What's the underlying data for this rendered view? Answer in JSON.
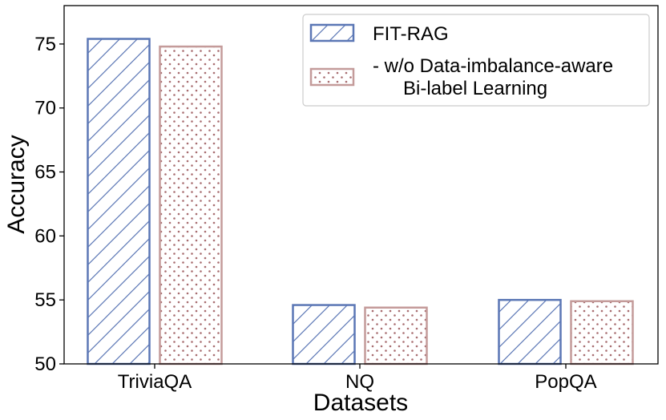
{
  "chart_data": {
    "type": "bar",
    "categories": [
      "TriviaQA",
      "NQ",
      "PopQA"
    ],
    "series": [
      {
        "name": "FIT-RAG",
        "values": [
          75.4,
          54.6,
          55.0
        ],
        "color": "#5b77b5",
        "hatch": "diagonal"
      },
      {
        "name_lines": [
          "- w/o Data-imbalance-aware",
          "Bi-label Learning"
        ],
        "values": [
          74.8,
          54.4,
          54.9
        ],
        "color": "#c49b9a",
        "hatch": "dots"
      }
    ],
    "xlabel": "Datasets",
    "ylabel": "Accuracy",
    "ylim": [
      50,
      78
    ],
    "yticks": [
      50,
      55,
      60,
      65,
      70,
      75
    ],
    "grid": false,
    "legend_position": "top-right"
  }
}
